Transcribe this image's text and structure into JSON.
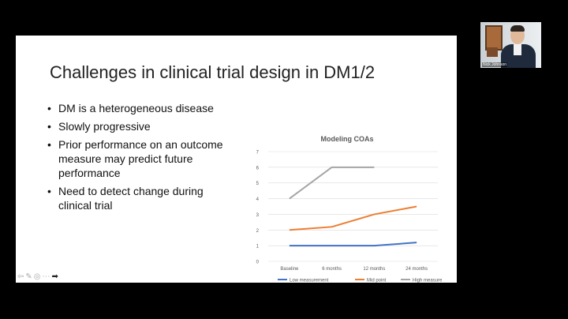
{
  "slide": {
    "title": "Challenges in clinical trial design in DM1/2",
    "bullets": [
      "DM is a heterogeneous disease",
      "Slowly progressive",
      "Prior performance on an outcome measure may predict future performance",
      "Need to detect change during clinical trial"
    ]
  },
  "chart_data": {
    "type": "line",
    "title": "Modeling COAs",
    "categories": [
      "Baseline",
      "6 months",
      "12 months",
      "24 months"
    ],
    "ylim": [
      0,
      7
    ],
    "yticks": [
      0,
      1,
      2,
      3,
      4,
      5,
      6,
      7
    ],
    "series": [
      {
        "name": "Low measurement",
        "color": "#4472c4",
        "values": [
          1,
          1,
          1,
          1.2
        ]
      },
      {
        "name": "Mid point",
        "color": "#ed7d31",
        "values": [
          2,
          2.2,
          3,
          3.5
        ]
      },
      {
        "name": "High measure",
        "color": "#a5a5a5",
        "values": [
          4,
          6,
          6,
          null
        ]
      }
    ],
    "legend": "bottom",
    "grid": true
  },
  "video": {
    "participant_name": "Nick Johnson"
  },
  "nav": {
    "prev_icon": "⇦",
    "pen_icon": "✎",
    "zoom_icon": "◎",
    "more_icon": "⋯",
    "next_icon": "➡"
  }
}
